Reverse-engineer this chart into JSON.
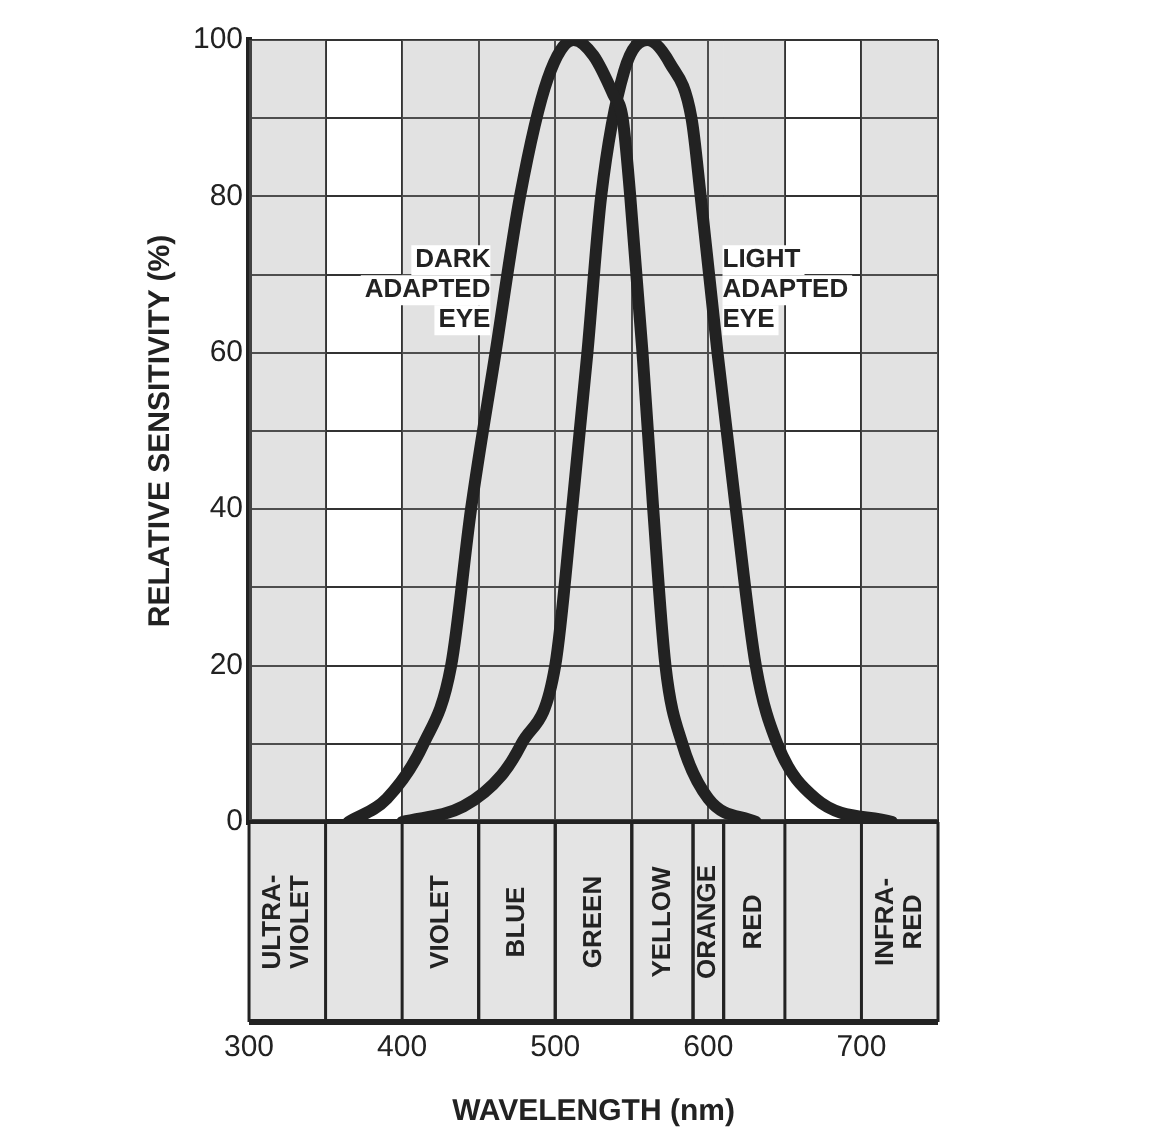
{
  "chart_data": {
    "type": "line",
    "xlabel": "WAVELENGTH (nm)",
    "ylabel": "RELATIVE SENSITIVITY (%)",
    "xlim": [
      300,
      750
    ],
    "xticks": [
      300,
      {
        "value": 350,
        "label": null
      },
      400,
      {
        "value": 450,
        "label": null
      },
      500,
      {
        "value": 550,
        "label": null
      },
      600,
      {
        "value": 650,
        "label": null
      },
      700,
      {
        "value": 750,
        "label": null
      }
    ],
    "ylim": [
      0,
      100
    ],
    "yticks": [
      0,
      {
        "value": 10,
        "label": null
      },
      20,
      {
        "value": 30,
        "label": null
      },
      40,
      {
        "value": 50,
        "label": null
      },
      60,
      {
        "value": 70,
        "label": null
      },
      80,
      {
        "value": 90,
        "label": null
      },
      100
    ],
    "grid": true,
    "legend": false,
    "marker": "none",
    "line_style": "solid",
    "series": [
      {
        "name": "DARK ADAPTED EYE",
        "color": "#222222",
        "x": [
          365,
          390,
          414,
          432,
          445,
          461,
          477,
          495,
          512,
          525,
          538,
          544,
          549,
          557,
          564,
          572,
          583,
          600,
          631
        ],
        "values": [
          0,
          3,
          10,
          20,
          40,
          60,
          80,
          95,
          100,
          98,
          93,
          90,
          80,
          60,
          40,
          20,
          10,
          3,
          0
        ]
      },
      {
        "name": "LIGHT ADAPTED EYE",
        "color": "#222222",
        "x": [
          400,
          440,
          465,
          478,
          500,
          511,
          521,
          530,
          545,
          560,
          575,
          589,
          595,
          606,
          618,
          631,
          645,
          670,
          720
        ],
        "values": [
          0,
          2,
          6,
          10,
          20,
          40,
          60,
          80,
          96,
          100,
          97,
          90,
          80,
          60,
          40,
          20,
          10,
          3,
          0
        ]
      }
    ],
    "bands": [
      {
        "axis": "x",
        "from": 300,
        "to": 350,
        "label": "ULTRA-VIOLET"
      },
      {
        "axis": "x",
        "from": 400,
        "to": 450,
        "label": "VIOLET"
      },
      {
        "axis": "x",
        "from": 450,
        "to": 500,
        "label": "BLUE"
      },
      {
        "axis": "x",
        "from": 500,
        "to": 550,
        "label": "GREEN"
      },
      {
        "axis": "x",
        "from": 550,
        "to": 590,
        "label": "YELLOW"
      },
      {
        "axis": "x",
        "from": 590,
        "to": 610,
        "label": "ORANGE"
      },
      {
        "axis": "x",
        "from": 610,
        "to": 650,
        "label": "RED"
      },
      {
        "axis": "x",
        "from": 700,
        "to": 750,
        "label": "INFRA-RED"
      }
    ]
  }
}
